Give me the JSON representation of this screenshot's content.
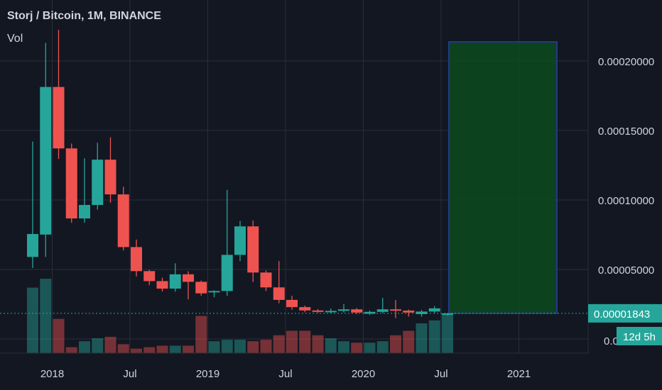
{
  "legend": {
    "title": "Storj / Bitcoin, 1M, BINANCE",
    "vol_label": "Vol"
  },
  "price_tag": {
    "value": "0.00001843",
    "countdown": "12d 5h"
  },
  "colors": {
    "background": "#131722",
    "grid": "#2a2e39",
    "up": "#26a69a",
    "down": "#ef5350",
    "box_fill": "#0d4a1f",
    "box_border": "#1e3a8a",
    "text": "#d1d4dc"
  },
  "chart_data": {
    "type": "candlestick",
    "price_axis": {
      "ylim": [
        0.0,
        0.00024
      ],
      "ticks": [
        "0.00005000",
        "0.00010000",
        "0.00015000",
        "0.00020000"
      ],
      "partial_tick": "0.000"
    },
    "time_axis": {
      "ticks": [
        "2018",
        "Jul",
        "2019",
        "Jul",
        "2020",
        "Jul",
        "2021"
      ]
    },
    "candles": [
      {
        "m": "2017-11",
        "o": 5.9e-05,
        "h": 0.000142,
        "l": 5.1e-05,
        "c": 7.55e-05
      },
      {
        "m": "2017-12",
        "o": 7.51e-05,
        "h": 0.000213,
        "l": 5.9e-05,
        "c": 0.0001813
      },
      {
        "m": "2018-01",
        "o": 0.0001813,
        "h": 0.0002224,
        "l": 0.0001295,
        "c": 0.0001371
      },
      {
        "m": "2018-02",
        "o": 0.0001371,
        "h": 0.0001406,
        "l": 8.36e-05,
        "c": 8.67e-05
      },
      {
        "m": "2018-03",
        "o": 8.67e-05,
        "h": 0.00013,
        "l": 8.36e-05,
        "c": 9.64e-05
      },
      {
        "m": "2018-04",
        "o": 9.64e-05,
        "h": 0.0001411,
        "l": 9.3e-05,
        "c": 0.000129
      },
      {
        "m": "2018-05",
        "o": 0.000129,
        "h": 0.0001451,
        "l": 9.8e-05,
        "c": 0.000104
      },
      {
        "m": "2018-06",
        "o": 0.000104,
        "h": 0.0001095,
        "l": 6.37e-05,
        "c": 6.61e-05
      },
      {
        "m": "2018-07",
        "o": 6.61e-05,
        "h": 7.15e-05,
        "l": 4.5e-05,
        "c": 4.88e-05
      },
      {
        "m": "2018-08",
        "o": 4.88e-05,
        "h": 4.97e-05,
        "l": 3.87e-05,
        "c": 4.16e-05
      },
      {
        "m": "2018-09",
        "o": 4.16e-05,
        "h": 4.41e-05,
        "l": 3.41e-05,
        "c": 3.62e-05
      },
      {
        "m": "2018-10",
        "o": 3.62e-05,
        "h": 5.44e-05,
        "l": 3.4e-05,
        "c": 4.65e-05
      },
      {
        "m": "2018-11",
        "o": 4.65e-05,
        "h": 4.87e-05,
        "l": 2.85e-05,
        "c": 4.11e-05
      },
      {
        "m": "2018-12",
        "o": 4.11e-05,
        "h": 4.2e-05,
        "l": 3.11e-05,
        "c": 3.28e-05
      },
      {
        "m": "2019-01",
        "o": 3.41e-05,
        "h": 3.5e-05,
        "l": 3e-05,
        "c": 3.45e-05
      },
      {
        "m": "2019-02",
        "o": 3.45e-05,
        "h": 0.0001073,
        "l": 3.1e-05,
        "c": 6.05e-05
      },
      {
        "m": "2019-03",
        "o": 6.05e-05,
        "h": 8.49e-05,
        "l": 5.6e-05,
        "c": 8.1e-05
      },
      {
        "m": "2019-04",
        "o": 8.1e-05,
        "h": 8.52e-05,
        "l": 4.1e-05,
        "c": 4.78e-05
      },
      {
        "m": "2019-05",
        "o": 4.78e-05,
        "h": 4.93e-05,
        "l": 3.45e-05,
        "c": 3.71e-05
      },
      {
        "m": "2019-06",
        "o": 3.71e-05,
        "h": 5.6e-05,
        "l": 2.57e-05,
        "c": 2.81e-05
      },
      {
        "m": "2019-07",
        "o": 2.81e-05,
        "h": 3.1e-05,
        "l": 2.11e-05,
        "c": 2.29e-05
      },
      {
        "m": "2019-08",
        "o": 2.29e-05,
        "h": 2.4e-05,
        "l": 1.92e-05,
        "c": 2.05e-05
      },
      {
        "m": "2019-09",
        "o": 2.05e-05,
        "h": 2.15e-05,
        "l": 1.88e-05,
        "c": 1.96e-05
      },
      {
        "m": "2019-10",
        "o": 1.94e-05,
        "h": 2.2e-05,
        "l": 1.85e-05,
        "c": 2.02e-05
      },
      {
        "m": "2019-11",
        "o": 2.02e-05,
        "h": 2.51e-05,
        "l": 1.9e-05,
        "c": 2.13e-05
      },
      {
        "m": "2019-12",
        "o": 2.13e-05,
        "h": 2.22e-05,
        "l": 1.8e-05,
        "c": 1.9e-05
      },
      {
        "m": "2020-01",
        "o": 1.81e-05,
        "h": 2.04e-05,
        "l": 1.74e-05,
        "c": 1.95e-05
      },
      {
        "m": "2020-02",
        "o": 1.95e-05,
        "h": 2.96e-05,
        "l": 1.85e-05,
        "c": 2.13e-05
      },
      {
        "m": "2020-03",
        "o": 2.13e-05,
        "h": 2.8e-05,
        "l": 1.5e-05,
        "c": 2.04e-05
      },
      {
        "m": "2020-04",
        "o": 2.04e-05,
        "h": 2.12e-05,
        "l": 1.6e-05,
        "c": 1.9e-05
      },
      {
        "m": "2020-05",
        "o": 1.79e-05,
        "h": 2.08e-05,
        "l": 1.6e-05,
        "c": 1.97e-05
      },
      {
        "m": "2020-06",
        "o": 1.97e-05,
        "h": 2.36e-05,
        "l": 1.87e-05,
        "c": 2.2e-05
      },
      {
        "m": "2020-07",
        "o": 1.84e-05,
        "h": 1.87e-05,
        "l": 1.68e-05,
        "c": 1.84e-05
      }
    ],
    "volume": [
      44,
      50,
      23,
      4,
      8,
      10,
      11,
      6,
      3,
      4,
      5,
      5,
      5,
      25,
      8,
      9,
      9,
      8,
      9,
      12,
      15,
      15,
      12,
      10,
      8,
      7,
      7,
      8,
      12,
      15,
      20,
      22,
      26
    ],
    "target_box": {
      "start": "2020-07",
      "end": "2021-03",
      "top": 0.00021377,
      "bottom": 1.843e-05
    }
  }
}
